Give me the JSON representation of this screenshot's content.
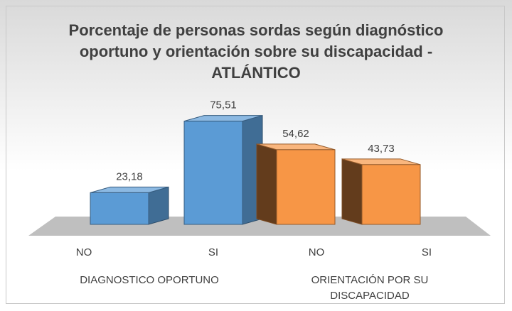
{
  "chart_data": {
    "type": "bar3d",
    "title": "Porcentaje de personas sordas según diagnóstico oportuno y  orientación sobre su discapacidad - ATLÁNTICO",
    "categories": [
      "NO",
      "SI",
      "NO",
      "SI"
    ],
    "groups": [
      {
        "name": "DIAGNOSTICO OPORTUNO",
        "span": [
          0,
          1
        ]
      },
      {
        "name": "ORIENTACIÓN POR SU DISCAPACIDAD",
        "span": [
          2,
          3
        ]
      }
    ],
    "values": [
      23.18,
      75.51,
      54.62,
      43.73
    ],
    "value_labels": [
      "23,18",
      "75,51",
      "54,62",
      "43,73"
    ],
    "colors": [
      "#5b9bd5",
      "#5b9bd5",
      "#f79646",
      "#f79646"
    ],
    "ylim": [
      0,
      80
    ]
  }
}
